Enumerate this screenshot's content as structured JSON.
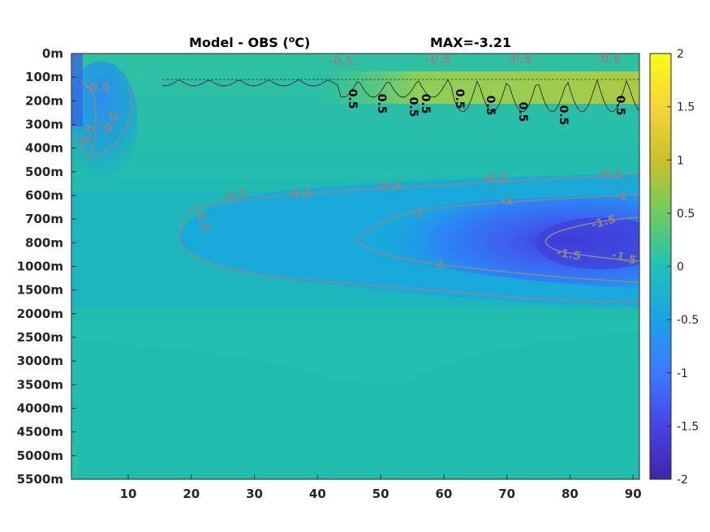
{
  "chart_data": {
    "type": "heatmap",
    "title_left": "Model - OBS (",
    "title_unit_sup": "o",
    "title_unit_rest": "C)",
    "title_right": "MAX=-3.21",
    "x_ticks": [
      10,
      20,
      30,
      40,
      50,
      60,
      70,
      80,
      90
    ],
    "xlim": [
      1,
      91
    ],
    "y_tick_labels": [
      "0m",
      "100m",
      "200m",
      "300m",
      "400m",
      "500m",
      "600m",
      "700m",
      "800m",
      "1000m",
      "1500m",
      "2000m",
      "2500m",
      "3000m",
      "3500m",
      "4000m",
      "4500m",
      "5000m",
      "5500m"
    ],
    "colorbar_ticks": [
      "2",
      "1.5",
      "1",
      "0.5",
      "0",
      "-0.5",
      "-1",
      "-1.5",
      "-2"
    ],
    "clim": [
      -2,
      2
    ],
    "colormap": [
      "#3e26a8",
      "#4744e5",
      "#3d79fe",
      "#1aa3e6",
      "#20c2b5",
      "#6dcc5f",
      "#c9c129",
      "#f7d53a",
      "#f9fb15"
    ],
    "contour_levels_gray": [
      "-0.5",
      "-1",
      "-1.5"
    ],
    "contour_levels_black": [
      "0.5"
    ],
    "contour_labels_gray": [
      "-0.5",
      "-0.5",
      "-0.5",
      "-0.5",
      "-0.5",
      "-0.5",
      "-0.5",
      "-0.5",
      "-0.5",
      "-0.5",
      "-0.5",
      "-0.5",
      "-0.5",
      "-1",
      "-1",
      "-1",
      "-1",
      "-1.5",
      "-1.5",
      "-1.5"
    ],
    "contour_labels_black": [
      "0.5",
      "0.5",
      "0.5",
      "0.5",
      "0.5",
      "0.5",
      "0.5",
      "0.5",
      "0.5"
    ]
  }
}
